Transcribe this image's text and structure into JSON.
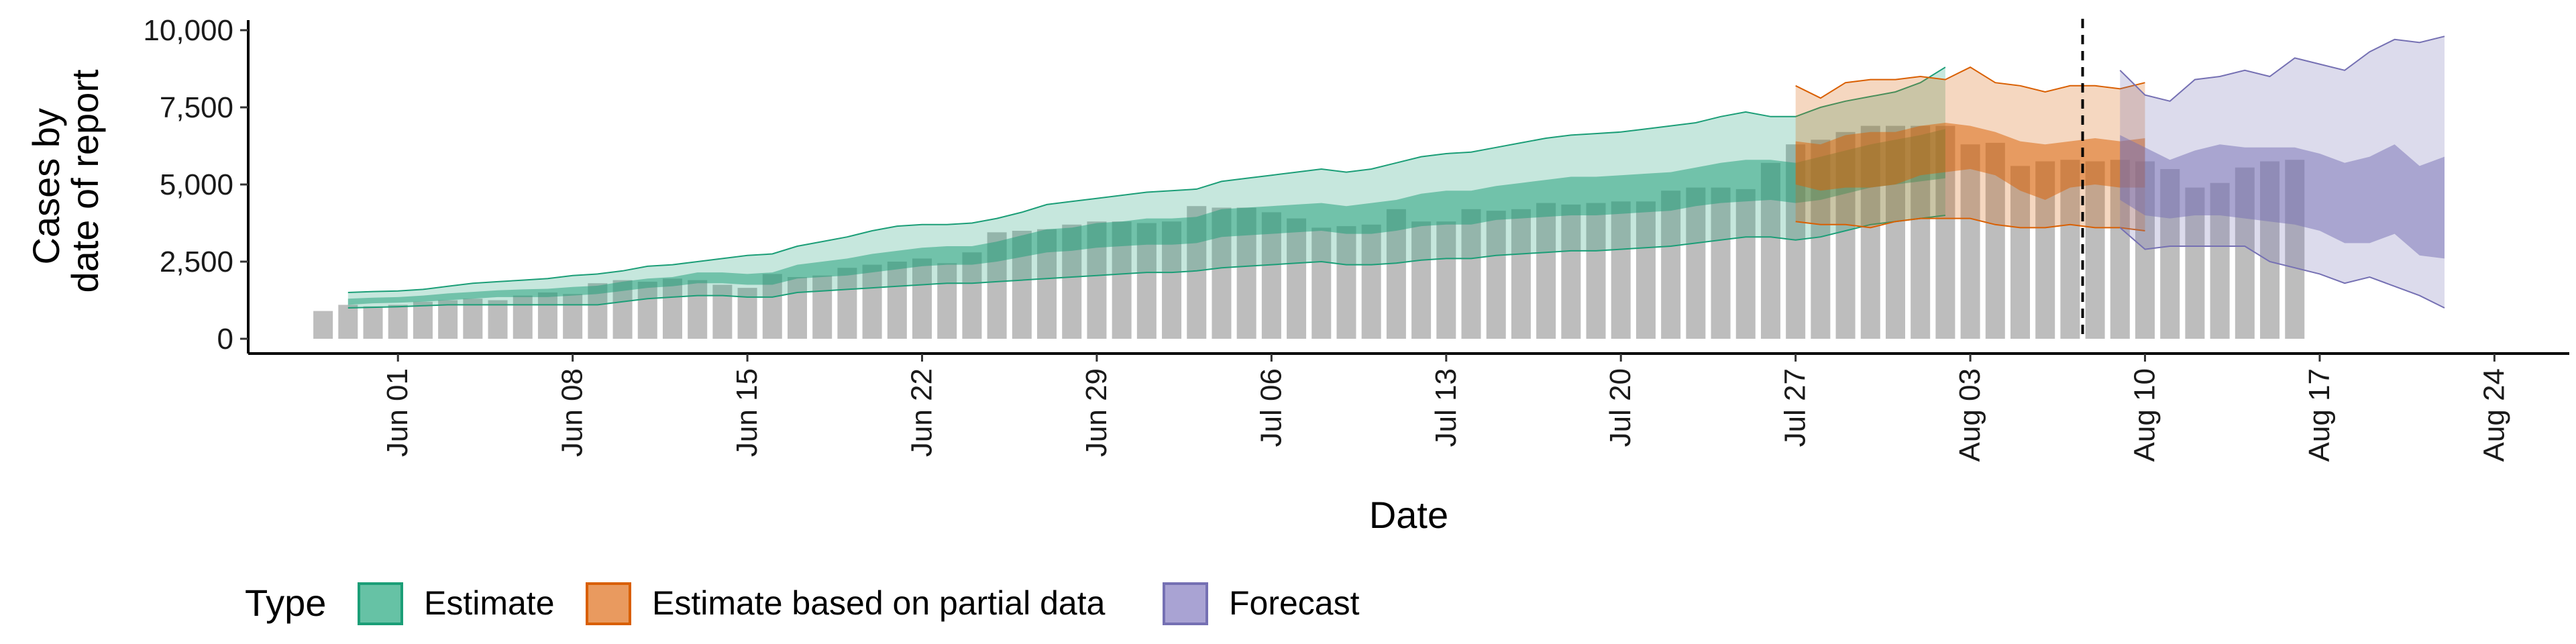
{
  "chart_data": {
    "type": "area",
    "xlabel": "Date",
    "ylabel_lines": [
      "Cases by",
      "date of report"
    ],
    "ylim": [
      0,
      10000
    ],
    "xlim": [
      "2020-05-26",
      "2020-08-27"
    ],
    "yticks": [
      0,
      2500,
      5000,
      7500,
      10000
    ],
    "ytick_labels": [
      "0",
      "2,500",
      "5,000",
      "7,500",
      "10,000"
    ],
    "xticks": [
      "2020-06-01",
      "2020-06-08",
      "2020-06-15",
      "2020-06-22",
      "2020-06-29",
      "2020-07-06",
      "2020-07-13",
      "2020-07-20",
      "2020-07-27",
      "2020-08-03",
      "2020-08-10",
      "2020-08-17",
      "2020-08-24"
    ],
    "xtick_labels": [
      "Jun 01",
      "Jun 08",
      "Jun 15",
      "Jun 22",
      "Jun 29",
      "Jul 06",
      "Jul 13",
      "Jul 20",
      "Jul 27",
      "Aug 03",
      "Aug 10",
      "Aug 17",
      "Aug 24"
    ],
    "forecast_date": "2020-08-08",
    "bar_color": "#bdbdbd",
    "bars": {
      "start": "2020-05-29",
      "values": [
        900,
        1100,
        1050,
        1100,
        1200,
        1250,
        1300,
        1250,
        1400,
        1500,
        1450,
        1800,
        1900,
        1850,
        1950,
        1900,
        1750,
        1650,
        2100,
        2000,
        2050,
        2300,
        2400,
        2500,
        2600,
        2450,
        2800,
        3450,
        3500,
        3550,
        3700,
        3800,
        3800,
        3750,
        3800,
        4300,
        4250,
        4250,
        4100,
        3900,
        3600,
        3650,
        3700,
        4200,
        3800,
        3800,
        4200,
        4150,
        4200,
        4400,
        4350,
        4400,
        4450,
        4450,
        4800,
        4900,
        4900,
        4850,
        5700,
        6300,
        6450,
        6700,
        6900,
        6900,
        6900,
        6900,
        6300,
        6350,
        5600,
        5750,
        5800,
        5750,
        5800,
        5750,
        5500,
        4900,
        5050,
        5550,
        5750,
        5800
      ]
    },
    "series": [
      {
        "name": "Estimate",
        "color": "#1b9e77",
        "fill": "#66c2a5",
        "start": "2020-05-30",
        "outer_low": [
          1000,
          1020,
          1040,
          1070,
          1100,
          1100,
          1100,
          1100,
          1100,
          1100,
          1100,
          1200,
          1300,
          1350,
          1400,
          1400,
          1350,
          1350,
          1500,
          1550,
          1600,
          1650,
          1700,
          1750,
          1800,
          1800,
          1850,
          1900,
          1950,
          2000,
          2050,
          2100,
          2150,
          2150,
          2200,
          2300,
          2350,
          2400,
          2450,
          2500,
          2400,
          2400,
          2450,
          2550,
          2600,
          2600,
          2700,
          2750,
          2800,
          2850,
          2850,
          2900,
          2950,
          3000,
          3100,
          3200,
          3300,
          3300,
          3200,
          3300,
          3500,
          3700,
          3800,
          3900,
          4000
        ],
        "outer_high": [
          1500,
          1530,
          1550,
          1600,
          1700,
          1800,
          1850,
          1900,
          1950,
          2050,
          2100,
          2200,
          2350,
          2400,
          2500,
          2600,
          2700,
          2750,
          3000,
          3150,
          3300,
          3500,
          3650,
          3700,
          3700,
          3750,
          3900,
          4100,
          4350,
          4450,
          4550,
          4650,
          4750,
          4800,
          4850,
          5100,
          5200,
          5300,
          5400,
          5500,
          5400,
          5500,
          5700,
          5900,
          6000,
          6050,
          6200,
          6350,
          6500,
          6600,
          6650,
          6700,
          6800,
          6900,
          7000,
          7200,
          7350,
          7200,
          7200,
          7500,
          7700,
          7850,
          8000,
          8300,
          8800
        ],
        "inner_low": [
          1100,
          1150,
          1170,
          1200,
          1250,
          1300,
          1350,
          1350,
          1350,
          1400,
          1450,
          1550,
          1650,
          1700,
          1800,
          1800,
          1750,
          1750,
          1950,
          2000,
          2050,
          2150,
          2250,
          2350,
          2400,
          2400,
          2500,
          2650,
          2800,
          2850,
          2950,
          3000,
          3050,
          3050,
          3100,
          3300,
          3350,
          3400,
          3450,
          3500,
          3400,
          3400,
          3500,
          3650,
          3700,
          3700,
          3850,
          3900,
          3950,
          4000,
          4000,
          4050,
          4100,
          4150,
          4300,
          4400,
          4450,
          4500,
          4400,
          4500,
          4700,
          4900,
          5000,
          5100,
          5200
        ],
        "inner_high": [
          1300,
          1330,
          1350,
          1400,
          1470,
          1520,
          1570,
          1600,
          1620,
          1680,
          1720,
          1850,
          1950,
          2000,
          2150,
          2150,
          2100,
          2150,
          2400,
          2500,
          2600,
          2750,
          2850,
          2950,
          3000,
          3000,
          3150,
          3350,
          3550,
          3600,
          3750,
          3800,
          3900,
          3900,
          3950,
          4200,
          4250,
          4300,
          4350,
          4400,
          4300,
          4400,
          4500,
          4700,
          4800,
          4800,
          4950,
          5050,
          5150,
          5250,
          5250,
          5300,
          5350,
          5400,
          5550,
          5700,
          5800,
          5800,
          5700,
          5900,
          6100,
          6300,
          6450,
          6600,
          6800
        ]
      },
      {
        "name": "Estimate based on partial data",
        "color": "#d95f02",
        "fill": "#fc8d62",
        "start": "2020-07-27",
        "outer_low": [
          3800,
          3700,
          3700,
          3600,
          3800,
          3900,
          3900,
          3900,
          3700,
          3600,
          3600,
          3700,
          3600,
          3600,
          3500
        ],
        "outer_high": [
          8200,
          7800,
          8300,
          8400,
          8400,
          8500,
          8400,
          8800,
          8300,
          8200,
          8000,
          8200,
          8200,
          8100,
          8300
        ],
        "inner_low": [
          5000,
          4800,
          4900,
          4900,
          5000,
          5300,
          5400,
          5500,
          5300,
          4800,
          4500,
          4900,
          5000,
          4900,
          4900
        ],
        "inner_high": [
          6400,
          6300,
          6600,
          6700,
          6700,
          6900,
          7000,
          6900,
          6700,
          6400,
          6300,
          6400,
          6500,
          6400,
          6500
        ]
      },
      {
        "name": "Forecast",
        "color": "#7570b3",
        "fill": "#8da0cb",
        "start": "2020-08-09",
        "outer_low": [
          3600,
          2900,
          3000,
          3000,
          3000,
          3000,
          2500,
          2300,
          2100,
          1800,
          2000,
          1700,
          1400,
          1000
        ],
        "outer_high": [
          8700,
          7900,
          7700,
          8400,
          8500,
          8700,
          8500,
          9100,
          8900,
          8700,
          9300,
          9700,
          9600,
          9800
        ],
        "inner_low": [
          4500,
          4000,
          3900,
          4000,
          4000,
          3900,
          3800,
          3700,
          3500,
          3100,
          3100,
          3400,
          2700,
          2600
        ],
        "inner_high": [
          6600,
          6200,
          5800,
          6100,
          6300,
          6200,
          6200,
          6200,
          6000,
          5700,
          5900,
          6300,
          5600,
          5900
        ]
      }
    ],
    "legend": {
      "title": "Type",
      "placement": "bottom",
      "items": [
        "Estimate",
        "Estimate based on partial data",
        "Forecast"
      ]
    }
  }
}
